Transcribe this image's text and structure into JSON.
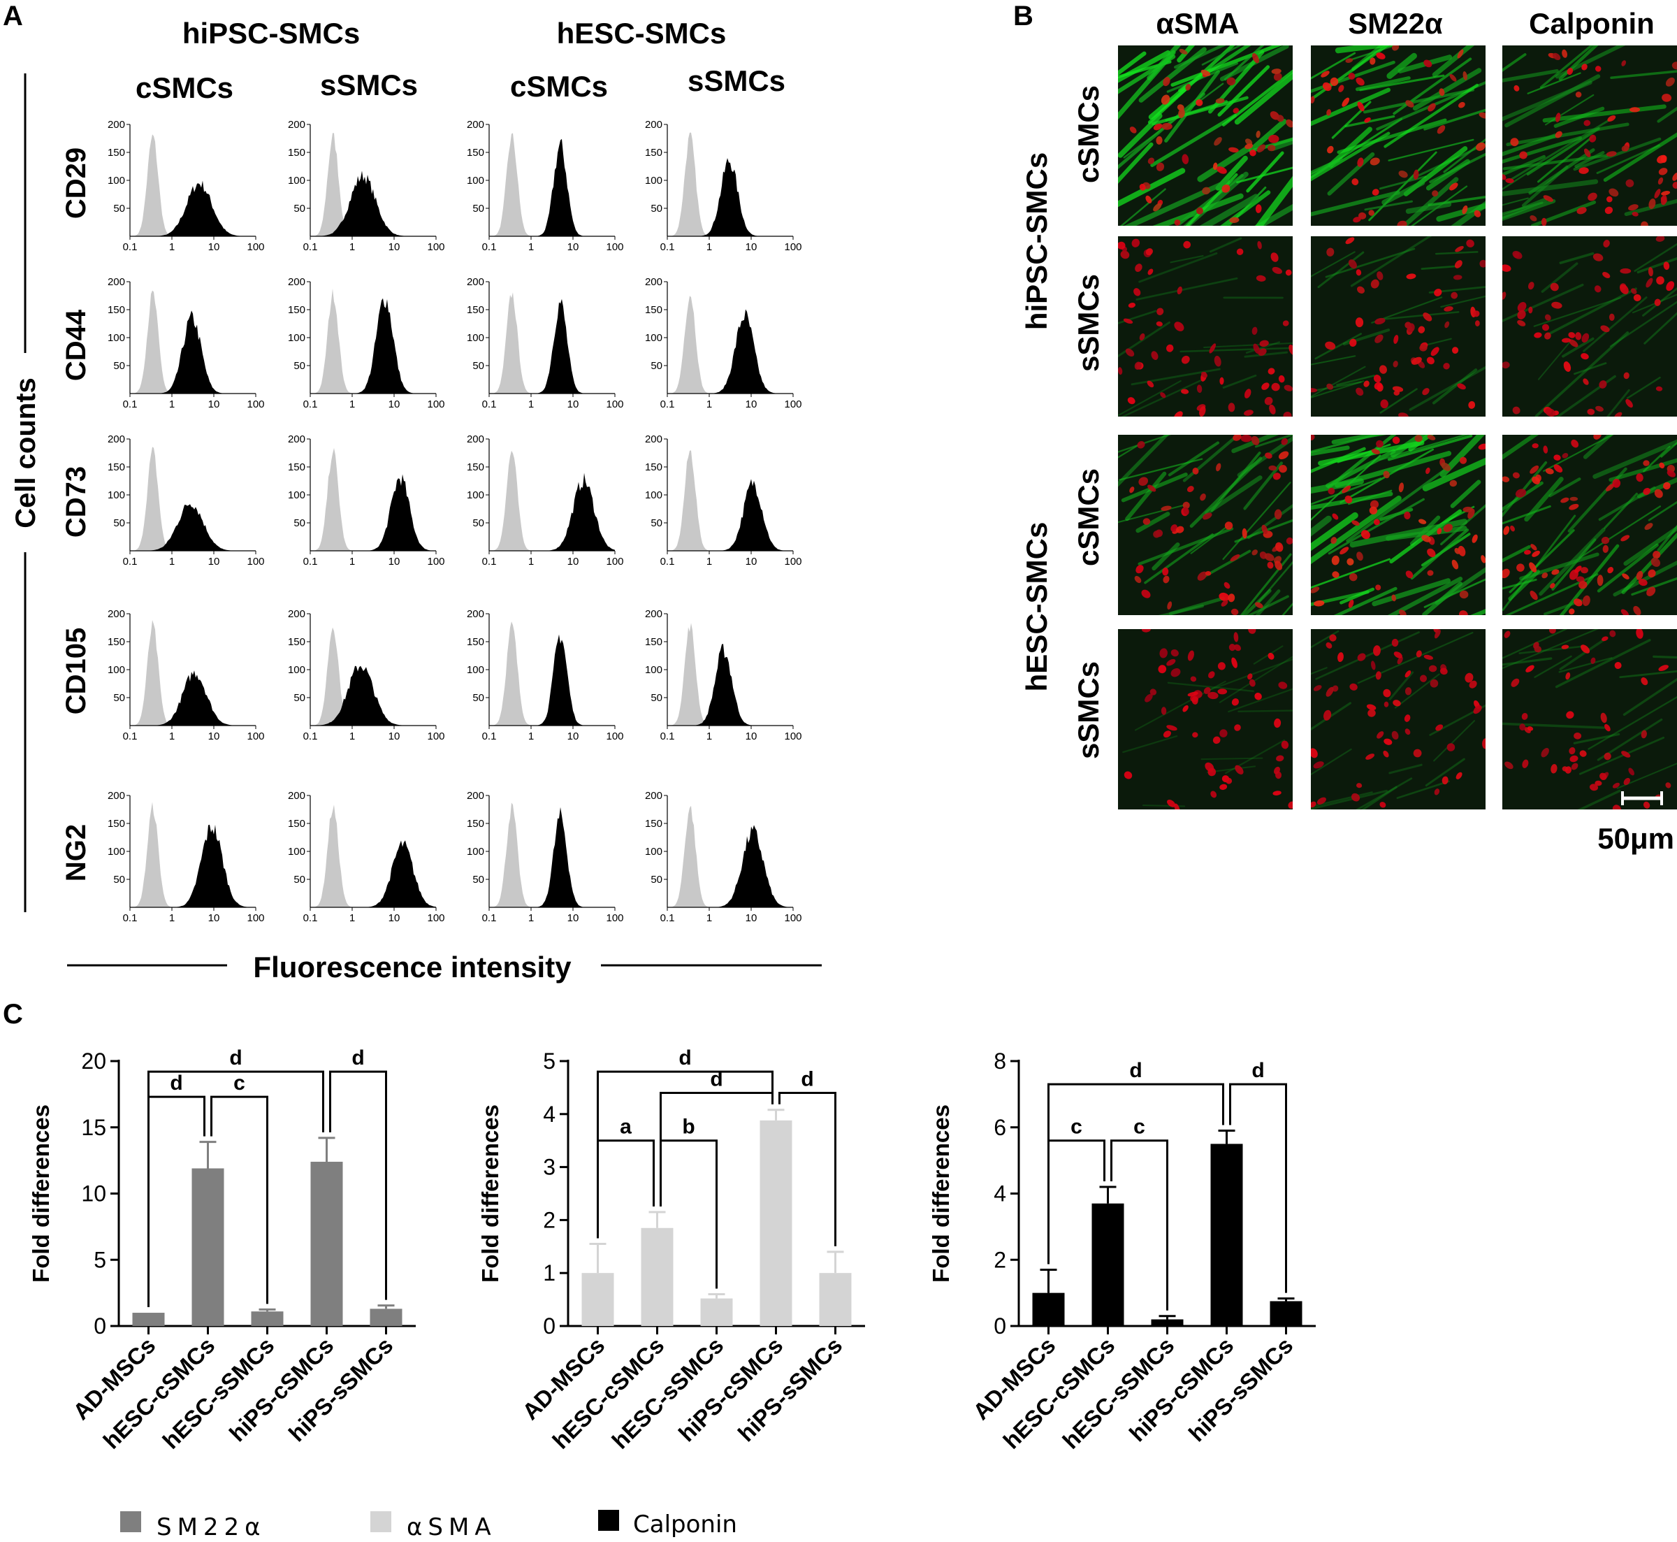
{
  "panel_labels": {
    "a": "A",
    "b": "B",
    "c": "C"
  },
  "panel_a": {
    "group_titles": [
      "hiPSC-SMCs",
      "hESC-SMCs"
    ],
    "column_titles": [
      "cSMCs",
      "sSMCs",
      "cSMCs",
      "sSMCs"
    ],
    "row_titles": [
      "CD29",
      "CD44",
      "CD73",
      "CD105",
      "NG2"
    ],
    "y_axis_label": "Cell counts",
    "x_axis_label": "Fluorescence intensity"
  },
  "panel_b": {
    "column_titles": [
      "αSMA",
      "SM22α",
      "Calponin"
    ],
    "group_titles": [
      "hiPSC-SMCs",
      "hESC-SMCs"
    ],
    "row_titles": [
      "cSMCs",
      "sSMCs",
      "cSMCs",
      "sSMCs"
    ],
    "scale_bar_label": "50μm"
  },
  "legend": {
    "items": [
      {
        "label": "SM22α",
        "color": "#7f7f7f"
      },
      {
        "label": "αSMA",
        "color": "#d4d4d4"
      },
      {
        "label": "Calponin",
        "color": "#000000"
      }
    ]
  },
  "chart_data": [
    {
      "type": "histogram",
      "panel": "A",
      "x_scale": "log",
      "xlim": [
        0.1,
        100
      ],
      "ylim": [
        0,
        200
      ],
      "x_ticks": [
        "0.1",
        "1",
        "10",
        "100"
      ],
      "y_ticks": [
        "50",
        "100",
        "150",
        "200"
      ],
      "overlay_colors": {
        "control": "#c8c8c8",
        "sample": "#000000"
      },
      "control_peak": {
        "center": 0.35,
        "height": 190
      },
      "panels": [
        {
          "row": "CD29",
          "group": "hiPSC-SMCs",
          "column": "cSMCs",
          "peak_center": 4.5,
          "peak_height": 105,
          "spread": 0.3
        },
        {
          "row": "CD29",
          "group": "hiPSC-SMCs",
          "column": "sSMCs",
          "peak_center": 1.8,
          "peak_height": 120,
          "spread": 0.3
        },
        {
          "row": "CD29",
          "group": "hESC-SMCs",
          "column": "cSMCs",
          "peak_center": 5,
          "peak_height": 180,
          "spread": 0.16
        },
        {
          "row": "CD29",
          "group": "hESC-SMCs",
          "column": "sSMCs",
          "peak_center": 3,
          "peak_height": 150,
          "spread": 0.2
        },
        {
          "row": "CD44",
          "group": "hiPSC-SMCs",
          "column": "cSMCs",
          "peak_center": 3,
          "peak_height": 150,
          "spread": 0.22
        },
        {
          "row": "CD44",
          "group": "hiPSC-SMCs",
          "column": "sSMCs",
          "peak_center": 6,
          "peak_height": 190,
          "spread": 0.2
        },
        {
          "row": "CD44",
          "group": "hESC-SMCs",
          "column": "cSMCs",
          "peak_center": 5,
          "peak_height": 180,
          "spread": 0.16
        },
        {
          "row": "CD44",
          "group": "hESC-SMCs",
          "column": "sSMCs",
          "peak_center": 7,
          "peak_height": 155,
          "spread": 0.22
        },
        {
          "row": "CD73",
          "group": "hiPSC-SMCs",
          "column": "cSMCs",
          "peak_center": 2.8,
          "peak_height": 95,
          "spread": 0.3
        },
        {
          "row": "CD73",
          "group": "hiPSC-SMCs",
          "column": "sSMCs",
          "peak_center": 14,
          "peak_height": 145,
          "spread": 0.22
        },
        {
          "row": "CD73",
          "group": "hESC-SMCs",
          "column": "cSMCs",
          "peak_center": 18,
          "peak_height": 140,
          "spread": 0.25
        },
        {
          "row": "CD73",
          "group": "hESC-SMCs",
          "column": "sSMCs",
          "peak_center": 11,
          "peak_height": 135,
          "spread": 0.22
        },
        {
          "row": "CD105",
          "group": "hiPSC-SMCs",
          "column": "cSMCs",
          "peak_center": 3.5,
          "peak_height": 105,
          "spread": 0.28
        },
        {
          "row": "CD105",
          "group": "hiPSC-SMCs",
          "column": "sSMCs",
          "peak_center": 1.6,
          "peak_height": 120,
          "spread": 0.3
        },
        {
          "row": "CD105",
          "group": "hESC-SMCs",
          "column": "cSMCs",
          "peak_center": 5,
          "peak_height": 180,
          "spread": 0.16
        },
        {
          "row": "CD105",
          "group": "hESC-SMCs",
          "column": "sSMCs",
          "peak_center": 2.2,
          "peak_height": 150,
          "spread": 0.2
        },
        {
          "row": "NG2",
          "group": "hiPSC-SMCs",
          "column": "cSMCs",
          "peak_center": 9,
          "peak_height": 160,
          "spread": 0.25
        },
        {
          "row": "NG2",
          "group": "hiPSC-SMCs",
          "column": "sSMCs",
          "peak_center": 16,
          "peak_height": 125,
          "spread": 0.25
        },
        {
          "row": "NG2",
          "group": "hESC-SMCs",
          "column": "cSMCs",
          "peak_center": 5,
          "peak_height": 180,
          "spread": 0.16
        },
        {
          "row": "NG2",
          "group": "hESC-SMCs",
          "column": "sSMCs",
          "peak_center": 11,
          "peak_height": 150,
          "spread": 0.25
        }
      ]
    },
    {
      "type": "bar",
      "panel": "C",
      "name": "SM22α",
      "color": "#7f7f7f",
      "categories": [
        "AD-MSCs",
        "hESC-cSMCs",
        "hESC-sSMCs",
        "hiPS-cSMCs",
        "hiPS-sSMCs"
      ],
      "values": [
        1.0,
        11.9,
        1.1,
        12.4,
        1.3
      ],
      "errors": [
        0,
        2.0,
        0.15,
        1.8,
        0.25
      ],
      "ylabel": "Fold differences",
      "ylim": [
        0,
        20
      ],
      "y_ticks": [
        0,
        5,
        10,
        15,
        20
      ],
      "significance": [
        {
          "from": 0,
          "to": 3,
          "label": "d",
          "level": 19.2
        },
        {
          "from": 0,
          "to": 1,
          "label": "d",
          "level": 17.3
        },
        {
          "from": 1,
          "to": 2,
          "label": "c",
          "level": 17.3
        },
        {
          "from": 3,
          "to": 4,
          "label": "d",
          "level": 19.2
        }
      ]
    },
    {
      "type": "bar",
      "panel": "C",
      "name": "αSMA",
      "color": "#d4d4d4",
      "categories": [
        "AD-MSCs",
        "hESC-cSMCs",
        "hESC-sSMCs",
        "hiPS-cSMCs",
        "hiPS-sSMCs"
      ],
      "values": [
        1.0,
        1.85,
        0.52,
        3.88,
        1.0
      ],
      "errors": [
        0.55,
        0.3,
        0.08,
        0.2,
        0.4
      ],
      "ylabel": "Fold differences",
      "ylim": [
        0,
        5
      ],
      "y_ticks": [
        0,
        1,
        2,
        3,
        4,
        5
      ],
      "significance": [
        {
          "from": 0,
          "to": 3,
          "label": "d",
          "level": 4.8
        },
        {
          "from": 1,
          "to": 3,
          "label": "d",
          "level": 4.4
        },
        {
          "from": 3,
          "to": 4,
          "label": "d",
          "level": 4.4
        },
        {
          "from": 0,
          "to": 1,
          "label": "a",
          "level": 3.5
        },
        {
          "from": 1,
          "to": 2,
          "label": "b",
          "level": 3.5
        }
      ]
    },
    {
      "type": "bar",
      "panel": "C",
      "name": "Calponin",
      "color": "#000000",
      "categories": [
        "AD-MSCs",
        "hESC-cSMCs",
        "hESC-sSMCs",
        "hiPS-cSMCs",
        "hiPS-sSMCs"
      ],
      "values": [
        1.0,
        3.7,
        0.2,
        5.5,
        0.75
      ],
      "errors": [
        0.7,
        0.5,
        0.1,
        0.4,
        0.08
      ],
      "ylabel": "Fold differences",
      "ylim": [
        0,
        8
      ],
      "y_ticks": [
        0,
        2,
        4,
        6,
        8
      ],
      "significance": [
        {
          "from": 0,
          "to": 3,
          "label": "d",
          "level": 7.3
        },
        {
          "from": 3,
          "to": 4,
          "label": "d",
          "level": 7.3
        },
        {
          "from": 0,
          "to": 1,
          "label": "c",
          "level": 5.6
        },
        {
          "from": 1,
          "to": 2,
          "label": "c",
          "level": 5.6
        }
      ]
    }
  ]
}
